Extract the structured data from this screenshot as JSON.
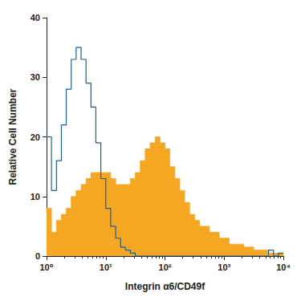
{
  "chart_data": {
    "type": "histogram",
    "x_label": "Integrin α6/CD49f",
    "y_label": "Relative Cell Number",
    "log": "x",
    "grid": false,
    "xlim": [
      1,
      10000
    ],
    "xticks": [
      {
        "value": 1,
        "label": "10⁰"
      },
      {
        "value": 10,
        "label": "10¹"
      },
      {
        "value": 100,
        "label": "10²"
      },
      {
        "value": 1000,
        "label": "10³"
      },
      {
        "value": 10000,
        "label": "10⁴"
      }
    ],
    "ylim": [
      0,
      40
    ],
    "yticks": [
      0,
      10,
      20,
      30,
      40
    ],
    "bins": [
      1,
      1.21,
      1.47,
      1.78,
      2.15,
      2.61,
      3.16,
      3.83,
      4.64,
      5.62,
      6.81,
      8.25,
      10,
      12.1,
      14.7,
      17.8,
      21.5,
      26.1,
      31.6,
      38.3,
      46.4,
      56.2,
      68.1,
      82.5,
      100,
      121,
      147,
      178,
      215,
      261,
      316,
      383,
      464,
      562,
      681,
      825,
      1000,
      1210,
      1470,
      1780,
      2150,
      2610,
      3160,
      3830,
      4640,
      5620,
      6810,
      8250,
      10000
    ],
    "series": [
      {
        "type": "area",
        "color": "#f5a623",
        "values": [
          8,
          4,
          6,
          7,
          8,
          10,
          11,
          12,
          13,
          14,
          14,
          14,
          14,
          13,
          12,
          12,
          12,
          13,
          14,
          16,
          18,
          19,
          20,
          19,
          18,
          15,
          13,
          11,
          9,
          7,
          6,
          5,
          5,
          4,
          4,
          3,
          3,
          2,
          2,
          2,
          1.5,
          1.5,
          1,
          1,
          1,
          0.5,
          0.5,
          0.5
        ]
      },
      {
        "type": "line",
        "color": "#1f5f8b",
        "values": [
          20,
          11,
          16,
          22,
          28,
          33,
          35,
          33,
          29,
          25,
          19,
          13,
          8,
          5,
          3,
          1.5,
          1,
          0.5,
          0,
          0,
          0,
          0,
          0,
          0,
          0,
          0,
          0,
          0,
          0,
          0,
          0,
          0,
          0,
          0,
          0,
          0,
          0,
          0,
          0,
          0,
          0,
          0,
          0,
          0,
          0,
          1,
          0,
          0.5
        ]
      }
    ]
  }
}
